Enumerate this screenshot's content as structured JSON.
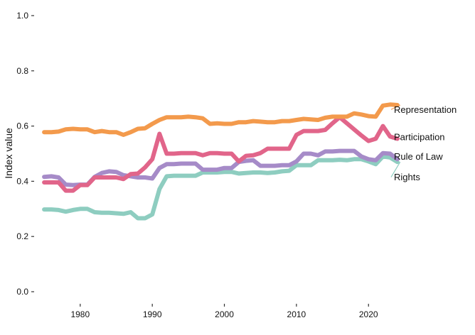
{
  "chart_data": {
    "type": "line",
    "ylabel": "Index value",
    "xlabel": "",
    "ylim": [
      0,
      1
    ],
    "xlim": [
      1974,
      2033
    ],
    "grid": false,
    "legend": "direct labels at line ends (right)",
    "x_ticks": [
      1980,
      1990,
      2000,
      2010,
      2020
    ],
    "x_tick_labels": [
      "1980",
      "1990",
      "2000",
      "2010",
      "2020"
    ],
    "y_ticks": [
      0,
      0.2,
      0.4,
      0.6,
      0.8,
      1.0
    ],
    "y_tick_labels": [
      "0.0",
      "0.2",
      "0.4",
      "0.6",
      "0.8",
      "1.0"
    ],
    "x": [
      1975,
      1976,
      1977,
      1978,
      1979,
      1980,
      1981,
      1982,
      1983,
      1984,
      1985,
      1986,
      1987,
      1988,
      1989,
      1990,
      1991,
      1992,
      1993,
      1994,
      1995,
      1996,
      1997,
      1998,
      1999,
      2000,
      2001,
      2002,
      2003,
      2004,
      2005,
      2006,
      2007,
      2008,
      2009,
      2010,
      2011,
      2012,
      2013,
      2014,
      2015,
      2016,
      2017,
      2018,
      2019,
      2020,
      2021,
      2022,
      2023,
      2024
    ],
    "series": [
      {
        "name": "Representation",
        "color": "#F39A4C",
        "values": [
          0.578,
          0.578,
          0.58,
          0.588,
          0.59,
          0.588,
          0.588,
          0.578,
          0.582,
          0.578,
          0.578,
          0.568,
          0.578,
          0.59,
          0.592,
          0.608,
          0.622,
          0.632,
          0.632,
          0.632,
          0.634,
          0.632,
          0.628,
          0.608,
          0.61,
          0.608,
          0.608,
          0.614,
          0.614,
          0.618,
          0.616,
          0.614,
          0.614,
          0.618,
          0.618,
          0.622,
          0.626,
          0.624,
          0.622,
          0.63,
          0.634,
          0.634,
          0.634,
          0.646,
          0.642,
          0.636,
          0.634,
          0.674,
          0.678,
          0.676
        ]
      },
      {
        "name": "Participation",
        "color": "#E1658A",
        "values": [
          0.396,
          0.396,
          0.396,
          0.366,
          0.366,
          0.386,
          0.386,
          0.414,
          0.414,
          0.414,
          0.414,
          0.408,
          0.426,
          0.428,
          0.45,
          0.48,
          0.572,
          0.5,
          0.5,
          0.502,
          0.502,
          0.502,
          0.494,
          0.502,
          0.502,
          0.5,
          0.5,
          0.472,
          0.492,
          0.494,
          0.502,
          0.518,
          0.518,
          0.518,
          0.518,
          0.568,
          0.582,
          0.582,
          0.582,
          0.586,
          0.61,
          0.632,
          0.61,
          0.588,
          0.566,
          0.546,
          0.554,
          0.6,
          0.562,
          0.554
        ]
      },
      {
        "name": "Rule of Law",
        "color": "#A68BC8",
        "values": [
          0.416,
          0.418,
          0.414,
          0.388,
          0.386,
          0.388,
          0.388,
          0.416,
          0.43,
          0.436,
          0.434,
          0.422,
          0.418,
          0.414,
          0.414,
          0.41,
          0.448,
          0.462,
          0.462,
          0.464,
          0.464,
          0.464,
          0.442,
          0.442,
          0.442,
          0.448,
          0.448,
          0.47,
          0.474,
          0.476,
          0.456,
          0.456,
          0.456,
          0.458,
          0.458,
          0.472,
          0.5,
          0.5,
          0.494,
          0.508,
          0.508,
          0.51,
          0.51,
          0.51,
          0.49,
          0.48,
          0.476,
          0.502,
          0.5,
          0.48
        ]
      },
      {
        "name": "Rights",
        "color": "#8ECDC0",
        "values": [
          0.298,
          0.298,
          0.296,
          0.29,
          0.296,
          0.3,
          0.3,
          0.288,
          0.286,
          0.286,
          0.284,
          0.282,
          0.288,
          0.266,
          0.266,
          0.28,
          0.372,
          0.418,
          0.42,
          0.42,
          0.42,
          0.42,
          0.432,
          0.432,
          0.432,
          0.434,
          0.434,
          0.428,
          0.43,
          0.432,
          0.432,
          0.43,
          0.432,
          0.436,
          0.438,
          0.458,
          0.458,
          0.458,
          0.476,
          0.476,
          0.476,
          0.478,
          0.476,
          0.48,
          0.48,
          0.472,
          0.462,
          0.49,
          0.486,
          0.47
        ]
      }
    ],
    "labels": [
      {
        "text": "Representation",
        "y": 0.66,
        "series": 0
      },
      {
        "text": "Participation",
        "y": 0.56,
        "series": 1
      },
      {
        "text": "Rule of Law",
        "y": 0.49,
        "series": 2
      },
      {
        "text": "Rights",
        "y": 0.415,
        "series": 3
      }
    ]
  }
}
